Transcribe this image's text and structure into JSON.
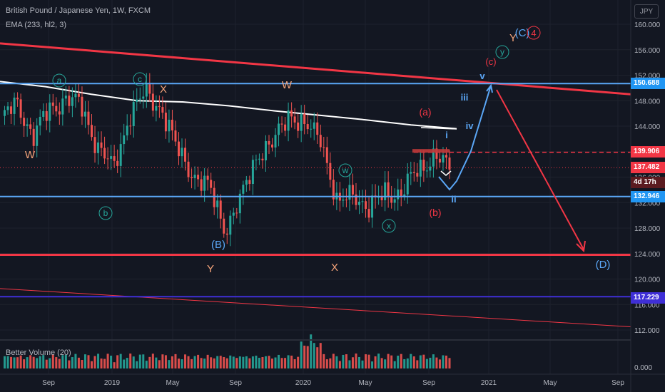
{
  "header": {
    "title": "British Pound / Japanese Yen, 1W, FXCM",
    "ema_label": "EMA (233, hl2, 3)",
    "currency": "JPY"
  },
  "volume_pane": {
    "label": "Better Volume (20)"
  },
  "price_tags": [
    {
      "value": "150.688",
      "bg": "#2196f3"
    },
    {
      "value": "139.906",
      "bg": "#f23645"
    },
    {
      "value": "137.482",
      "bg": "#f23645"
    },
    {
      "value": "4d 17h",
      "bg": "#5b1b20"
    },
    {
      "value": "132.946",
      "bg": "#2196f3"
    },
    {
      "value": "117.229",
      "bg": "#3f2fd6"
    }
  ],
  "colors": {
    "background": "#131722",
    "up": "#26a69a",
    "down": "#ef5350",
    "ema": "#ffffff",
    "red_line": "#f23645",
    "blue_line": "#5ba7f7",
    "purple_line": "#3f2fd6",
    "green_label": "#26a69a",
    "orange_label": "#f5a47a",
    "blue_label": "#5ba7f7",
    "red_label": "#f23645"
  },
  "chart_data": {
    "type": "candlestick",
    "title": "British Pound / Japanese Yen, 1W, FXCM",
    "y_ticks": [
      112.0,
      116.0,
      120.0,
      124.0,
      128.0,
      132.0,
      136.0,
      140.0,
      144.0,
      148.0,
      152.0,
      156.0,
      160.0
    ],
    "ylim": [
      110.0,
      161.5
    ],
    "x_ticks": [
      "Sep",
      "2019",
      "May",
      "Sep",
      "2020",
      "May",
      "Sep",
      "2021",
      "May",
      "Sep"
    ],
    "volume_tick": "0.000",
    "weekly_close_path": [
      {
        "date": "2018-06",
        "close": 145.0
      },
      {
        "date": "2018-07",
        "close": 147.5
      },
      {
        "date": "2018-08",
        "close": 142.5
      },
      {
        "date": "2018-09",
        "close": 146.5
      },
      {
        "date": "2018-10",
        "close": 148.5
      },
      {
        "date": "2018-11",
        "close": 147.0
      },
      {
        "date": "2018-12",
        "close": 141.0
      },
      {
        "date": "2019-01",
        "close": 137.0
      },
      {
        "date": "2019-02",
        "close": 146.0
      },
      {
        "date": "2019-03",
        "close": 149.0
      },
      {
        "date": "2019-04",
        "close": 147.0
      },
      {
        "date": "2019-05",
        "close": 140.0
      },
      {
        "date": "2019-06",
        "close": 136.5
      },
      {
        "date": "2019-07",
        "close": 134.0
      },
      {
        "date": "2019-08",
        "close": 128.0
      },
      {
        "date": "2019-09",
        "close": 132.5
      },
      {
        "date": "2019-10",
        "close": 140.0
      },
      {
        "date": "2019-11",
        "close": 141.0
      },
      {
        "date": "2019-12",
        "close": 146.5
      },
      {
        "date": "2020-01",
        "close": 143.5
      },
      {
        "date": "2020-02",
        "close": 142.5
      },
      {
        "date": "2020-03",
        "close": 131.0
      },
      {
        "date": "2020-04",
        "close": 134.0
      },
      {
        "date": "2020-05",
        "close": 130.5
      },
      {
        "date": "2020-06",
        "close": 134.0
      },
      {
        "date": "2020-07",
        "close": 133.0
      },
      {
        "date": "2020-08",
        "close": 137.5
      },
      {
        "date": "2020-09",
        "close": 139.0
      },
      {
        "date": "2020-10",
        "close": 137.5
      }
    ],
    "ema_233": [
      151.0,
      150.2,
      149.0,
      148.0,
      147.8,
      147.2,
      146.4,
      145.7,
      145.0,
      144.2,
      143.6
    ],
    "trend_lines": [
      {
        "name": "upper red trendline",
        "color": "red",
        "from": 157.0,
        "to": 149.0
      },
      {
        "name": "lower red support",
        "color": "red",
        "level": 123.8
      },
      {
        "name": "descending thin red",
        "color": "red",
        "from": 118.5,
        "to": 112.5
      }
    ],
    "horizontal_levels": [
      {
        "value": 150.688,
        "color": "blue"
      },
      {
        "value": 139.906,
        "color": "red",
        "style": "dashed"
      },
      {
        "value": 137.482,
        "color": "red",
        "style": "dotted"
      },
      {
        "value": 132.946,
        "color": "blue"
      },
      {
        "value": 117.229,
        "color": "purple"
      }
    ],
    "projections": [
      {
        "color": "blue",
        "points": [
          137.5,
          134.5,
          150.688
        ]
      },
      {
        "color": "red",
        "points": [
          150.688,
          124.3
        ]
      }
    ],
    "wave_labels": {
      "circled_green": [
        "a",
        "c",
        "b",
        "w",
        "x",
        "y"
      ],
      "orange": [
        "W",
        "X",
        "W",
        "Y",
        "X",
        "Y"
      ],
      "blue": [
        "(B)",
        "(D)",
        "v",
        "iii",
        "iv",
        "i",
        "ii",
        "(C)"
      ],
      "red": [
        "(a)",
        "(b)",
        "(c)",
        "4"
      ]
    }
  }
}
